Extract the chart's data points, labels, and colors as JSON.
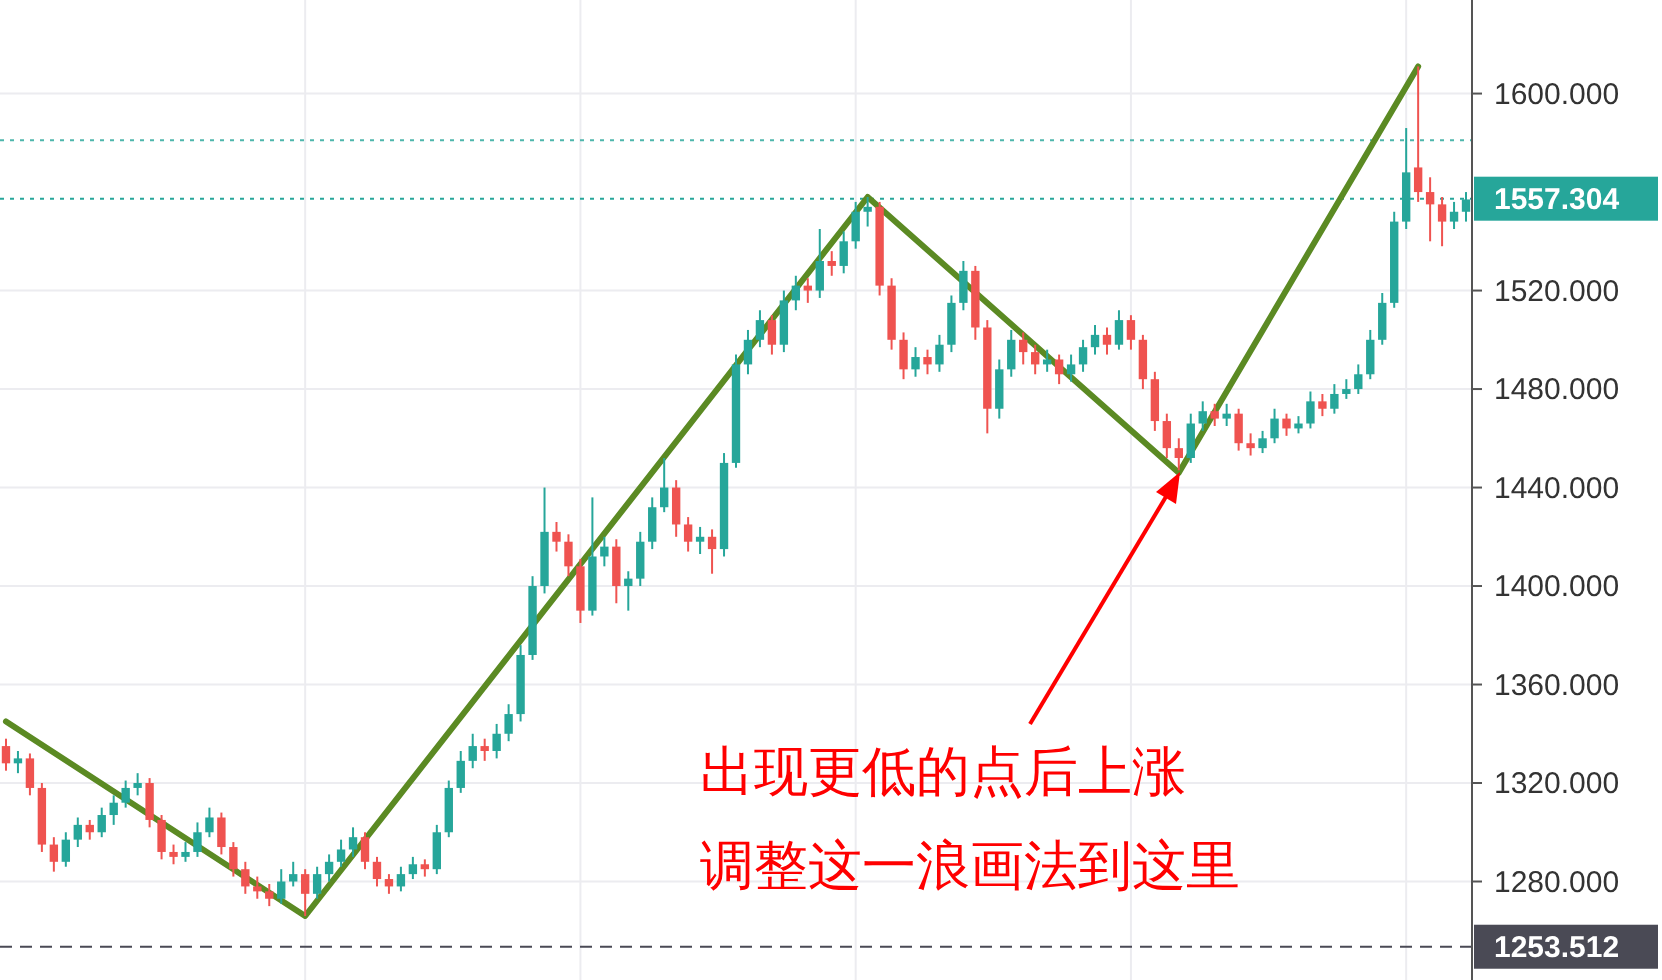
{
  "chart_data": {
    "type": "candlestick",
    "categories": [
      null,
      null,
      null,
      null,
      null,
      null,
      null,
      null,
      null,
      null,
      null,
      null,
      null,
      null,
      null,
      null,
      null,
      null,
      null,
      null,
      null,
      null,
      null,
      null,
      null,
      null,
      null,
      null,
      null,
      null,
      null,
      null,
      null,
      null,
      null,
      null,
      null,
      null,
      null,
      null,
      null,
      null,
      null,
      null,
      null,
      null,
      null,
      null,
      null,
      null,
      null,
      null,
      null,
      null,
      null,
      null,
      null,
      null,
      null,
      null,
      null,
      null,
      null,
      null,
      null,
      null,
      null,
      null,
      null,
      null,
      null,
      null,
      null,
      null,
      null,
      null,
      null,
      null,
      null,
      null,
      null,
      null,
      null,
      null,
      null,
      null,
      null,
      null,
      null,
      null,
      null,
      null,
      null,
      null,
      null,
      null,
      null,
      null,
      null,
      null,
      null,
      null,
      null,
      null,
      null,
      null,
      null,
      null,
      null,
      null,
      null,
      null,
      null,
      null,
      null,
      null,
      null,
      null,
      null,
      null,
      null,
      null,
      null
    ],
    "ohlc": [
      [
        1335,
        1338,
        1325,
        1328
      ],
      [
        1328,
        1333,
        1324,
        1330
      ],
      [
        1330,
        1332,
        1315,
        1318
      ],
      [
        1318,
        1320,
        1292,
        1295
      ],
      [
        1295,
        1298,
        1284,
        1288
      ],
      [
        1288,
        1300,
        1286,
        1297
      ],
      [
        1297,
        1306,
        1294,
        1303
      ],
      [
        1303,
        1305,
        1297,
        1300
      ],
      [
        1300,
        1310,
        1298,
        1307
      ],
      [
        1307,
        1315,
        1303,
        1312
      ],
      [
        1312,
        1321,
        1310,
        1318
      ],
      [
        1318,
        1324,
        1315,
        1320
      ],
      [
        1320,
        1322,
        1302,
        1305
      ],
      [
        1305,
        1307,
        1289,
        1292
      ],
      [
        1292,
        1295,
        1287,
        1290
      ],
      [
        1290,
        1296,
        1288,
        1292
      ],
      [
        1292,
        1304,
        1290,
        1300
      ],
      [
        1300,
        1310,
        1298,
        1306
      ],
      [
        1306,
        1308,
        1291,
        1294
      ],
      [
        1294,
        1296,
        1282,
        1285
      ],
      [
        1285,
        1288,
        1275,
        1278
      ],
      [
        1278,
        1282,
        1273,
        1276
      ],
      [
        1276,
        1279,
        1270,
        1273
      ],
      [
        1273,
        1285,
        1271,
        1280
      ],
      [
        1280,
        1288,
        1278,
        1283
      ],
      [
        1283,
        1285,
        1266,
        1275
      ],
      [
        1275,
        1286,
        1273,
        1283
      ],
      [
        1283,
        1291,
        1280,
        1288
      ],
      [
        1288,
        1297,
        1286,
        1293
      ],
      [
        1293,
        1302,
        1290,
        1298
      ],
      [
        1298,
        1300,
        1285,
        1288
      ],
      [
        1288,
        1290,
        1278,
        1281
      ],
      [
        1281,
        1283,
        1275,
        1278
      ],
      [
        1278,
        1286,
        1276,
        1283
      ],
      [
        1283,
        1290,
        1281,
        1287
      ],
      [
        1287,
        1289,
        1282,
        1285
      ],
      [
        1285,
        1303,
        1283,
        1300
      ],
      [
        1300,
        1321,
        1298,
        1318
      ],
      [
        1318,
        1333,
        1316,
        1329
      ],
      [
        1329,
        1340,
        1326,
        1335
      ],
      [
        1335,
        1338,
        1329,
        1333
      ],
      [
        1333,
        1344,
        1330,
        1340
      ],
      [
        1340,
        1352,
        1337,
        1348
      ],
      [
        1348,
        1376,
        1345,
        1372
      ],
      [
        1372,
        1404,
        1370,
        1400
      ],
      [
        1400,
        1440,
        1397,
        1422
      ],
      [
        1422,
        1426,
        1414,
        1418
      ],
      [
        1418,
        1421,
        1404,
        1408
      ],
      [
        1408,
        1411,
        1385,
        1390
      ],
      [
        1390,
        1436,
        1388,
        1412
      ],
      [
        1412,
        1420,
        1408,
        1416
      ],
      [
        1416,
        1419,
        1393,
        1400
      ],
      [
        1400,
        1406,
        1390,
        1403
      ],
      [
        1403,
        1422,
        1400,
        1418
      ],
      [
        1418,
        1436,
        1415,
        1432
      ],
      [
        1432,
        1452,
        1430,
        1440
      ],
      [
        1440,
        1443,
        1420,
        1425
      ],
      [
        1425,
        1428,
        1414,
        1418
      ],
      [
        1418,
        1424,
        1413,
        1420
      ],
      [
        1420,
        1423,
        1405,
        1415
      ],
      [
        1415,
        1454,
        1412,
        1450
      ],
      [
        1450,
        1494,
        1448,
        1490
      ],
      [
        1490,
        1504,
        1486,
        1500
      ],
      [
        1500,
        1512,
        1497,
        1508
      ],
      [
        1508,
        1510,
        1494,
        1498
      ],
      [
        1498,
        1520,
        1495,
        1516
      ],
      [
        1516,
        1526,
        1512,
        1522
      ],
      [
        1522,
        1525,
        1515,
        1520
      ],
      [
        1520,
        1545,
        1517,
        1532
      ],
      [
        1532,
        1536,
        1526,
        1530
      ],
      [
        1530,
        1544,
        1527,
        1540
      ],
      [
        1540,
        1556,
        1537,
        1552
      ],
      [
        1552,
        1558,
        1546,
        1554
      ],
      [
        1554,
        1556,
        1518,
        1522
      ],
      [
        1522,
        1525,
        1496,
        1500
      ],
      [
        1500,
        1503,
        1484,
        1488
      ],
      [
        1488,
        1497,
        1485,
        1493
      ],
      [
        1493,
        1496,
        1486,
        1490
      ],
      [
        1490,
        1502,
        1487,
        1498
      ],
      [
        1498,
        1518,
        1495,
        1515
      ],
      [
        1515,
        1532,
        1512,
        1528
      ],
      [
        1528,
        1530,
        1500,
        1505
      ],
      [
        1505,
        1508,
        1462,
        1472
      ],
      [
        1472,
        1492,
        1468,
        1488
      ],
      [
        1488,
        1504,
        1485,
        1500
      ],
      [
        1500,
        1503,
        1490,
        1495
      ],
      [
        1495,
        1498,
        1486,
        1490
      ],
      [
        1490,
        1496,
        1487,
        1492
      ],
      [
        1492,
        1494,
        1482,
        1486
      ],
      [
        1486,
        1494,
        1483,
        1490
      ],
      [
        1490,
        1500,
        1487,
        1497
      ],
      [
        1497,
        1506,
        1494,
        1502
      ],
      [
        1502,
        1505,
        1494,
        1498
      ],
      [
        1498,
        1512,
        1496,
        1508
      ],
      [
        1508,
        1510,
        1496,
        1500
      ],
      [
        1500,
        1502,
        1480,
        1484
      ],
      [
        1484,
        1487,
        1463,
        1467
      ],
      [
        1467,
        1470,
        1452,
        1456
      ],
      [
        1456,
        1460,
        1447,
        1452
      ],
      [
        1452,
        1470,
        1450,
        1466
      ],
      [
        1466,
        1475,
        1463,
        1471
      ],
      [
        1471,
        1474,
        1465,
        1468
      ],
      [
        1468,
        1474,
        1465,
        1470
      ],
      [
        1470,
        1472,
        1455,
        1458
      ],
      [
        1458,
        1462,
        1453,
        1456
      ],
      [
        1456,
        1463,
        1454,
        1460
      ],
      [
        1460,
        1472,
        1458,
        1468
      ],
      [
        1468,
        1470,
        1461,
        1464
      ],
      [
        1464,
        1469,
        1462,
        1466
      ],
      [
        1466,
        1479,
        1464,
        1475
      ],
      [
        1475,
        1478,
        1469,
        1472
      ],
      [
        1472,
        1482,
        1470,
        1478
      ],
      [
        1478,
        1484,
        1476,
        1480
      ],
      [
        1480,
        1490,
        1478,
        1486
      ],
      [
        1486,
        1504,
        1484,
        1500
      ],
      [
        1500,
        1519,
        1498,
        1515
      ],
      [
        1515,
        1552,
        1513,
        1548
      ],
      [
        1548,
        1586,
        1545,
        1568
      ],
      [
        1570,
        1611,
        1556,
        1560
      ],
      [
        1560,
        1566,
        1540,
        1555
      ],
      [
        1555,
        1558,
        1538,
        1548
      ],
      [
        1548,
        1556,
        1545,
        1552
      ],
      [
        1552,
        1560,
        1548,
        1557
      ]
    ],
    "series": [
      {
        "type": "line",
        "values": [
          1345,
          null,
          null,
          null,
          null,
          null,
          null,
          null,
          null,
          null,
          null,
          null,
          null,
          null,
          null,
          null,
          null,
          null,
          null,
          null,
          null,
          null,
          null,
          null,
          null,
          1266,
          null,
          null,
          null,
          null,
          null,
          null,
          null,
          null,
          null,
          null,
          null,
          null,
          null,
          null,
          null,
          null,
          null,
          null,
          null,
          null,
          null,
          null,
          null,
          null,
          null,
          null,
          null,
          null,
          null,
          null,
          null,
          null,
          null,
          null,
          null,
          null,
          null,
          null,
          null,
          null,
          null,
          null,
          null,
          null,
          null,
          null,
          1558,
          null,
          null,
          null,
          null,
          null,
          null,
          null,
          null,
          null,
          null,
          null,
          null,
          null,
          null,
          null,
          null,
          null,
          null,
          null,
          null,
          null,
          null,
          null,
          null,
          null,
          1446,
          null,
          null,
          null,
          null,
          null,
          null,
          null,
          null,
          null,
          null,
          null,
          null,
          null,
          null,
          null,
          null,
          null,
          null,
          null,
          1611,
          null,
          null,
          null,
          null
        ],
        "color": "#5b8a23"
      }
    ],
    "ylim": [
      1240,
      1638
    ],
    "yticks": [
      {
        "value": 1280,
        "label": "1280.000"
      },
      {
        "value": 1320,
        "label": "1320.000"
      },
      {
        "value": 1360,
        "label": "1360.000"
      },
      {
        "value": 1400,
        "label": "1400.000"
      },
      {
        "value": 1440,
        "label": "1440.000"
      },
      {
        "value": 1480,
        "label": "1480.000"
      },
      {
        "value": 1520,
        "label": "1520.000"
      },
      {
        "value": 1600,
        "label": "1600.000"
      }
    ],
    "ref_lines": [
      {
        "axis": "y",
        "value": 1581,
        "color": "#4db6ac",
        "line_style": "dotted"
      },
      {
        "axis": "y",
        "value": 1557.304,
        "label": "1557.304",
        "color": "#26a69a",
        "line_style": "dotted"
      },
      {
        "axis": "y",
        "value": 1253.512,
        "label": "1253.512",
        "color": "#4a4a55",
        "line_style": "dashed"
      }
    ],
    "annotations": [
      "出现更低的点后上涨",
      "调整这一浪画法到这里"
    ],
    "grid": true,
    "tick_labels": "y"
  }
}
